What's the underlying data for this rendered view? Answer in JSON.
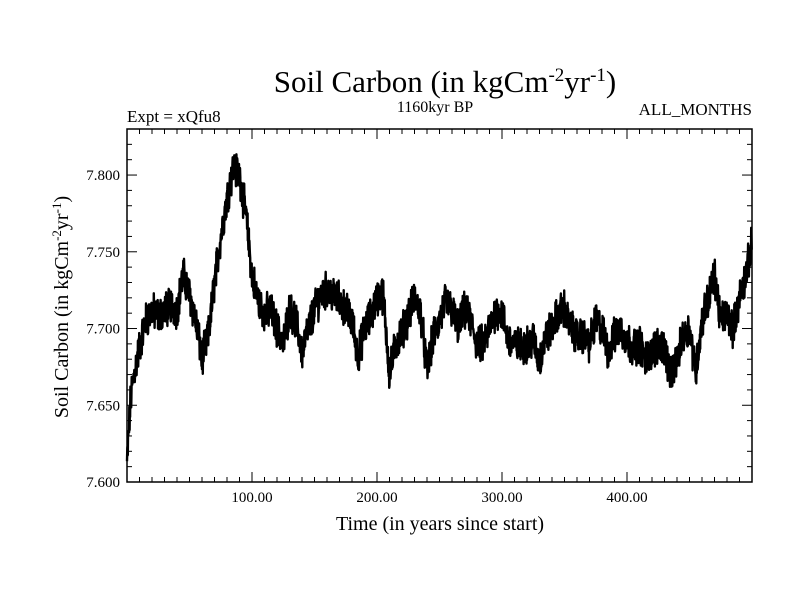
{
  "chart_data": {
    "type": "line",
    "title_main": "Soil Carbon (in kgCm",
    "title_exp1": "-2",
    "title_mid": "yr",
    "title_exp2": "-1",
    "title_close": ")",
    "subtitle_left": "Expt = xQfu8",
    "subtitle_center": "1160kyr BP",
    "subtitle_right": "ALL_MONTHS",
    "xlabel": "Time (in years since start)",
    "ylabel_main": "Soil Carbon (in kgCm",
    "ylabel_exp1": "-2",
    "ylabel_mid": "yr",
    "ylabel_exp2": "-1",
    "ylabel_close": ")",
    "xlim": [
      0,
      500
    ],
    "ylim": [
      7.6,
      7.83
    ],
    "xticks_major": [
      100,
      200,
      300,
      400
    ],
    "xtick_labels": [
      "100.00",
      "200.00",
      "300.00",
      "400.00"
    ],
    "yticks_major": [
      7.6,
      7.65,
      7.7,
      7.75,
      7.8
    ],
    "ytick_labels": [
      "7.600",
      "7.650",
      "7.700",
      "7.750",
      "7.800"
    ],
    "series": [
      {
        "name": "Soil Carbon",
        "x": [
          0,
          3,
          6,
          10,
          15,
          20,
          25,
          30,
          35,
          40,
          45,
          50,
          55,
          60,
          65,
          70,
          75,
          80,
          85,
          90,
          95,
          100,
          105,
          110,
          115,
          120,
          125,
          130,
          135,
          140,
          145,
          150,
          155,
          160,
          165,
          170,
          175,
          180,
          185,
          190,
          195,
          200,
          205,
          210,
          215,
          220,
          225,
          230,
          235,
          240,
          245,
          250,
          255,
          260,
          265,
          270,
          275,
          280,
          285,
          290,
          295,
          300,
          305,
          310,
          315,
          320,
          325,
          330,
          335,
          340,
          345,
          350,
          355,
          360,
          365,
          370,
          375,
          380,
          385,
          390,
          395,
          400,
          405,
          410,
          415,
          420,
          425,
          430,
          435,
          440,
          445,
          450,
          455,
          460,
          465,
          470,
          475,
          480,
          485,
          490,
          495,
          500
        ],
        "y": [
          7.612,
          7.655,
          7.672,
          7.688,
          7.705,
          7.712,
          7.708,
          7.712,
          7.715,
          7.712,
          7.735,
          7.722,
          7.705,
          7.68,
          7.695,
          7.73,
          7.76,
          7.785,
          7.805,
          7.8,
          7.775,
          7.735,
          7.718,
          7.71,
          7.712,
          7.7,
          7.69,
          7.712,
          7.705,
          7.685,
          7.7,
          7.712,
          7.722,
          7.725,
          7.722,
          7.718,
          7.712,
          7.705,
          7.682,
          7.7,
          7.708,
          7.72,
          7.722,
          7.67,
          7.69,
          7.698,
          7.708,
          7.72,
          7.71,
          7.672,
          7.695,
          7.705,
          7.718,
          7.712,
          7.7,
          7.712,
          7.705,
          7.69,
          7.69,
          7.7,
          7.712,
          7.71,
          7.692,
          7.69,
          7.688,
          7.69,
          7.693,
          7.678,
          7.695,
          7.7,
          7.71,
          7.713,
          7.7,
          7.695,
          7.695,
          7.69,
          7.705,
          7.7,
          7.685,
          7.695,
          7.7,
          7.692,
          7.688,
          7.69,
          7.68,
          7.685,
          7.69,
          7.688,
          7.668,
          7.68,
          7.695,
          7.7,
          7.672,
          7.705,
          7.72,
          7.735,
          7.705,
          7.71,
          7.7,
          7.72,
          7.735,
          7.755
        ]
      }
    ]
  }
}
